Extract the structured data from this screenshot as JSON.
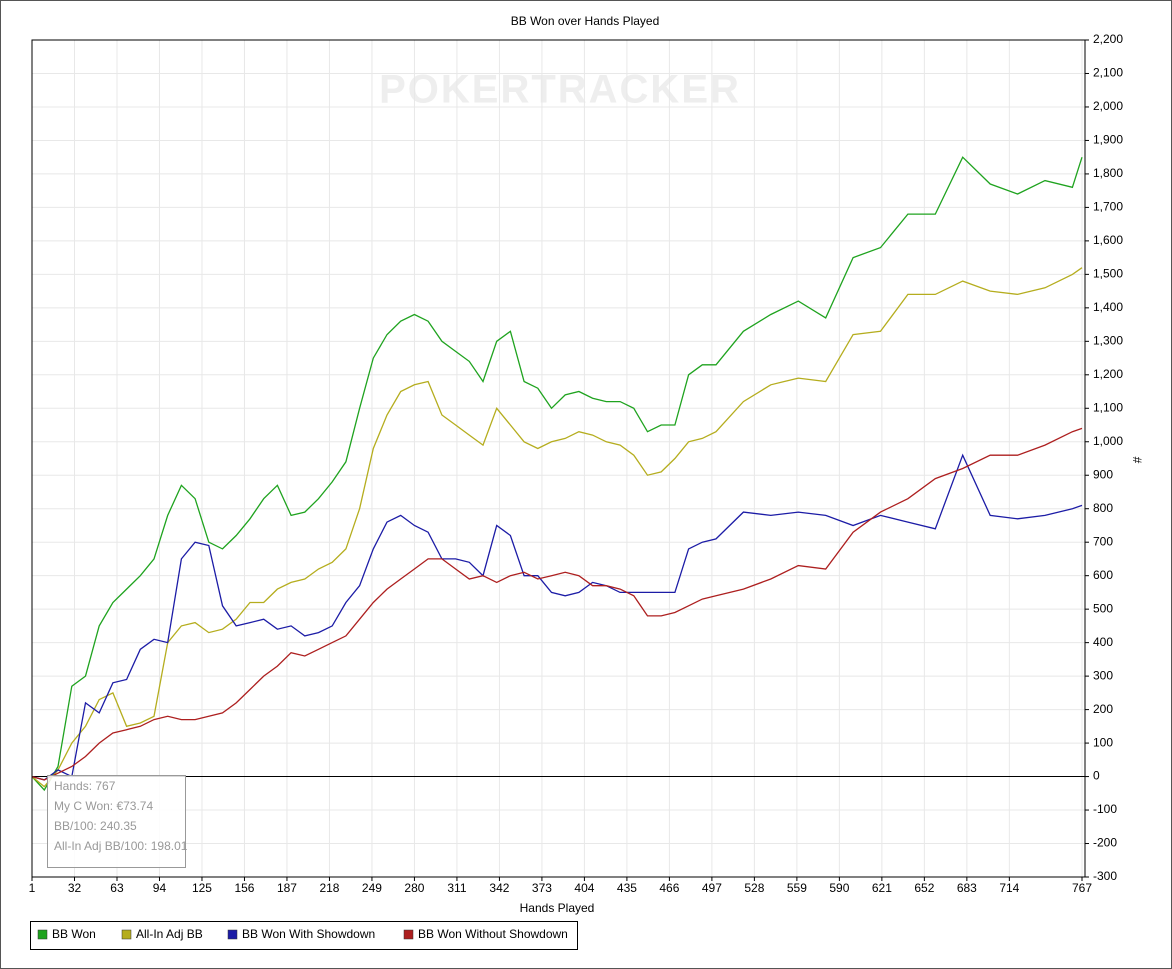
{
  "chart_data": {
    "type": "line",
    "title": "BB Won over Hands Played",
    "xlabel": "Hands Played",
    "ylabel": "#",
    "watermark": "POKERTRACKER",
    "tooltip": [
      "Hands: 767",
      "My C Won: €73.74",
      "BB/100: 240.35",
      "All-In Adj BB/100: 198.01"
    ],
    "x": [
      1,
      10,
      20,
      30,
      40,
      50,
      60,
      70,
      80,
      90,
      100,
      110,
      120,
      130,
      140,
      150,
      160,
      170,
      180,
      190,
      200,
      210,
      220,
      230,
      240,
      250,
      260,
      270,
      280,
      290,
      300,
      310,
      320,
      330,
      340,
      350,
      360,
      370,
      380,
      390,
      400,
      410,
      420,
      430,
      440,
      450,
      460,
      470,
      480,
      490,
      500,
      520,
      540,
      560,
      580,
      600,
      620,
      640,
      660,
      680,
      700,
      720,
      740,
      760,
      767
    ],
    "series": [
      {
        "name": "BB Won",
        "color": "#1fa31f",
        "values": [
          0,
          -40,
          30,
          270,
          300,
          450,
          520,
          560,
          600,
          650,
          780,
          870,
          830,
          700,
          680,
          720,
          770,
          830,
          870,
          780,
          790,
          830,
          880,
          940,
          1100,
          1250,
          1320,
          1360,
          1380,
          1360,
          1300,
          1270,
          1240,
          1180,
          1300,
          1330,
          1180,
          1160,
          1100,
          1140,
          1150,
          1130,
          1120,
          1120,
          1100,
          1030,
          1050,
          1050,
          1200,
          1230,
          1230,
          1330,
          1380,
          1420,
          1370,
          1550,
          1580,
          1680,
          1680,
          1850,
          1770,
          1740,
          1780,
          1760,
          1850
        ]
      },
      {
        "name": "All-In Adj BB",
        "color": "#b5ad1e",
        "values": [
          0,
          -30,
          20,
          100,
          150,
          230,
          250,
          150,
          160,
          180,
          400,
          450,
          460,
          430,
          440,
          470,
          520,
          520,
          560,
          580,
          590,
          620,
          640,
          680,
          800,
          980,
          1080,
          1150,
          1170,
          1180,
          1080,
          1050,
          1020,
          990,
          1100,
          1050,
          1000,
          980,
          1000,
          1010,
          1030,
          1020,
          1000,
          990,
          960,
          900,
          910,
          950,
          1000,
          1010,
          1030,
          1120,
          1170,
          1190,
          1180,
          1320,
          1330,
          1440,
          1440,
          1480,
          1450,
          1440,
          1460,
          1500,
          1520
        ]
      },
      {
        "name": "BB Won With Showdown",
        "color": "#1c1ca6",
        "values": [
          0,
          -10,
          20,
          0,
          220,
          190,
          280,
          290,
          380,
          410,
          400,
          650,
          700,
          690,
          510,
          450,
          460,
          470,
          440,
          450,
          420,
          430,
          450,
          520,
          570,
          680,
          760,
          780,
          750,
          730,
          650,
          650,
          640,
          600,
          750,
          720,
          600,
          600,
          550,
          540,
          550,
          580,
          570,
          550,
          550,
          550,
          550,
          550,
          680,
          700,
          710,
          790,
          780,
          790,
          780,
          750,
          780,
          760,
          740,
          960,
          780,
          770,
          780,
          800,
          810
        ]
      },
      {
        "name": "BB Won Without Showdown",
        "color": "#ad1f1f",
        "values": [
          0,
          -10,
          10,
          30,
          60,
          100,
          130,
          140,
          150,
          170,
          180,
          170,
          170,
          180,
          190,
          220,
          260,
          300,
          330,
          370,
          360,
          380,
          400,
          420,
          470,
          520,
          560,
          590,
          620,
          650,
          650,
          620,
          590,
          600,
          580,
          600,
          610,
          590,
          600,
          610,
          600,
          570,
          570,
          560,
          540,
          480,
          480,
          490,
          510,
          530,
          540,
          560,
          590,
          630,
          620,
          730,
          790,
          830,
          890,
          920,
          960,
          960,
          990,
          1030,
          1040
        ]
      }
    ],
    "xlim": [
      1,
      767
    ],
    "xticks": [
      1,
      32,
      63,
      94,
      125,
      156,
      187,
      218,
      249,
      280,
      311,
      342,
      373,
      404,
      435,
      466,
      497,
      528,
      559,
      590,
      621,
      652,
      683,
      714,
      767
    ],
    "ylim": [
      -300,
      2200
    ],
    "yticks": [
      -300,
      -200,
      -100,
      0,
      100,
      200,
      300,
      400,
      500,
      600,
      700,
      800,
      900,
      {
        "value": 1000,
        "label": "1,000"
      },
      {
        "value": 1100,
        "label": "1,100"
      },
      {
        "value": 1200,
        "label": "1,200"
      },
      {
        "value": 1300,
        "label": "1,300"
      },
      {
        "value": 1400,
        "label": "1,400"
      },
      {
        "value": 1500,
        "label": "1,500"
      },
      {
        "value": 1600,
        "label": "1,600"
      },
      {
        "value": 1700,
        "label": "1,700"
      },
      {
        "value": 1800,
        "label": "1,800"
      },
      {
        "value": 1900,
        "label": "1,900"
      },
      {
        "value": 2000,
        "label": "2,000"
      },
      {
        "value": 2100,
        "label": "2,100"
      },
      {
        "value": 2200,
        "label": "2,200"
      }
    ],
    "grid": true
  }
}
